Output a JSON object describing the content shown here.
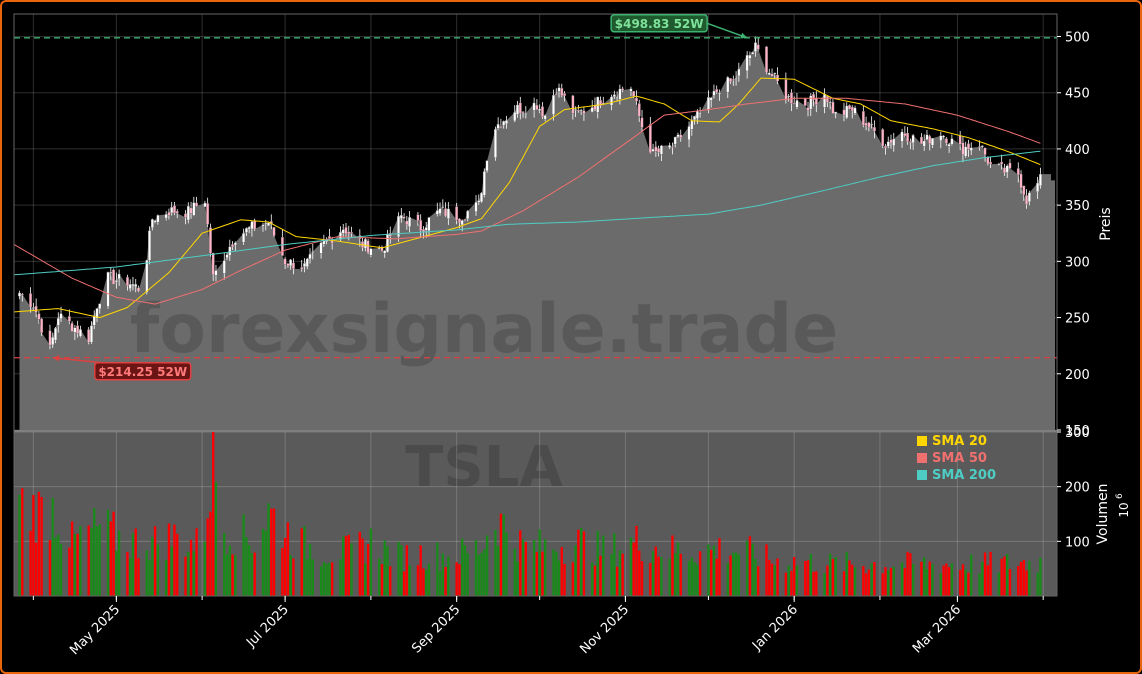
{
  "chart_data": [
    {
      "type": "candlestick",
      "panel": "price",
      "ticker_watermark": "TSLA",
      "site_watermark": "forexsignale.trade",
      "ylabel": "Preis",
      "ylim": [
        150,
        520
      ],
      "yticks": [
        150,
        200,
        250,
        300,
        350,
        400,
        450,
        500
      ],
      "xlim": [
        "2025-03-25",
        "2026-04-06"
      ],
      "x_ticks": [
        {
          "date": "2025-05-01",
          "label": "May 2025"
        },
        {
          "date": "2025-07-01",
          "label": "Jul 2025"
        },
        {
          "date": "2025-09-01",
          "label": "Sep 2025"
        },
        {
          "date": "2025-11-01",
          "label": "Nov 2025"
        },
        {
          "date": "2026-01-01",
          "label": "Jan 2026"
        },
        {
          "date": "2026-03-01",
          "label": "Mar 2026"
        }
      ],
      "grid": true,
      "close_keypoints": [
        [
          "2025-03-27",
          272
        ],
        [
          "2025-04-01",
          262
        ],
        [
          "2025-04-07",
          221
        ],
        [
          "2025-04-10",
          252
        ],
        [
          "2025-04-16",
          241
        ],
        [
          "2025-04-21",
          232
        ],
        [
          "2025-04-24",
          262
        ],
        [
          "2025-04-28",
          285
        ],
        [
          "2025-05-05",
          282
        ],
        [
          "2025-05-09",
          276
        ],
        [
          "2025-05-12",
          305
        ],
        [
          "2025-05-14",
          338
        ],
        [
          "2025-05-20",
          345
        ],
        [
          "2025-05-27",
          344
        ],
        [
          "2025-06-02",
          355
        ],
        [
          "2025-06-05",
          285
        ],
        [
          "2025-06-09",
          305
        ],
        [
          "2025-06-13",
          322
        ],
        [
          "2025-06-19",
          330
        ],
        [
          "2025-06-25",
          335
        ],
        [
          "2025-07-01",
          300
        ],
        [
          "2025-07-08",
          295
        ],
        [
          "2025-07-16",
          318
        ],
        [
          "2025-07-22",
          330
        ],
        [
          "2025-07-29",
          315
        ],
        [
          "2025-08-05",
          310
        ],
        [
          "2025-08-12",
          340
        ],
        [
          "2025-08-19",
          330
        ],
        [
          "2025-08-26",
          345
        ],
        [
          "2025-09-02",
          340
        ],
        [
          "2025-09-09",
          350
        ],
        [
          "2025-09-12",
          395
        ],
        [
          "2025-09-15",
          420
        ],
        [
          "2025-09-22",
          435
        ],
        [
          "2025-09-30",
          440
        ],
        [
          "2025-10-03",
          430
        ],
        [
          "2025-10-07",
          455
        ],
        [
          "2025-10-14",
          430
        ],
        [
          "2025-10-21",
          440
        ],
        [
          "2025-10-27",
          450
        ],
        [
          "2025-11-03",
          455
        ],
        [
          "2025-11-07",
          420
        ],
        [
          "2025-11-11",
          395
        ],
        [
          "2025-11-18",
          402
        ],
        [
          "2025-11-24",
          420
        ],
        [
          "2025-12-01",
          440
        ],
        [
          "2025-12-05",
          455
        ],
        [
          "2025-12-10",
          460
        ],
        [
          "2025-12-15",
          480
        ],
        [
          "2025-12-18",
          490
        ],
        [
          "2025-12-24",
          465
        ],
        [
          "2025-12-30",
          445
        ],
        [
          "2026-01-06",
          440
        ],
        [
          "2026-01-12",
          450
        ],
        [
          "2026-01-16",
          430
        ],
        [
          "2026-01-22",
          435
        ],
        [
          "2026-01-28",
          420
        ],
        [
          "2026-02-03",
          405
        ],
        [
          "2026-02-09",
          415
        ],
        [
          "2026-02-16",
          405
        ],
        [
          "2026-02-23",
          415
        ],
        [
          "2026-03-02",
          400
        ],
        [
          "2026-03-09",
          405
        ],
        [
          "2026-03-13",
          385
        ],
        [
          "2026-03-18",
          380
        ],
        [
          "2026-03-23",
          378
        ],
        [
          "2026-03-26",
          355
        ],
        [
          "2026-03-31",
          372
        ]
      ],
      "last_close": 372,
      "series": [
        {
          "name": "SMA 20",
          "color": "#ffd700",
          "keypoints": [
            [
              "2025-03-25",
              255
            ],
            [
              "2025-04-10",
              258
            ],
            [
              "2025-04-25",
              250
            ],
            [
              "2025-05-05",
              259
            ],
            [
              "2025-05-20",
              290
            ],
            [
              "2025-06-01",
              325
            ],
            [
              "2025-06-15",
              337
            ],
            [
              "2025-06-25",
              335
            ],
            [
              "2025-07-05",
              322
            ],
            [
              "2025-07-20",
              318
            ],
            [
              "2025-08-05",
              312
            ],
            [
              "2025-08-20",
              322
            ],
            [
              "2025-09-01",
              330
            ],
            [
              "2025-09-10",
              338
            ],
            [
              "2025-09-20",
              370
            ],
            [
              "2025-10-01",
              420
            ],
            [
              "2025-10-10",
              435
            ],
            [
              "2025-10-25",
              440
            ],
            [
              "2025-11-05",
              447
            ],
            [
              "2025-11-15",
              440
            ],
            [
              "2025-11-25",
              425
            ],
            [
              "2025-12-05",
              424
            ],
            [
              "2025-12-12",
              440
            ],
            [
              "2025-12-20",
              463
            ],
            [
              "2026-01-01",
              462
            ],
            [
              "2026-01-15",
              445
            ],
            [
              "2026-01-25",
              440
            ],
            [
              "2026-02-05",
              425
            ],
            [
              "2026-02-20",
              418
            ],
            [
              "2026-03-05",
              410
            ],
            [
              "2026-03-20",
              397
            ],
            [
              "2026-03-31",
              386
            ]
          ]
        },
        {
          "name": "SMA 50",
          "color": "#f07070",
          "keypoints": [
            [
              "2025-03-25",
              315
            ],
            [
              "2025-04-15",
              285
            ],
            [
              "2025-05-01",
              268
            ],
            [
              "2025-05-15",
              262
            ],
            [
              "2025-06-01",
              275
            ],
            [
              "2025-06-15",
              292
            ],
            [
              "2025-07-01",
              310
            ],
            [
              "2025-07-20",
              322
            ],
            [
              "2025-08-10",
              320
            ],
            [
              "2025-09-01",
              324
            ],
            [
              "2025-09-10",
              327
            ],
            [
              "2025-09-25",
              345
            ],
            [
              "2025-10-15",
              375
            ],
            [
              "2025-11-01",
              405
            ],
            [
              "2025-11-15",
              430
            ],
            [
              "2025-12-01",
              435
            ],
            [
              "2025-12-15",
              440
            ],
            [
              "2026-01-01",
              445
            ],
            [
              "2026-01-20",
              445
            ],
            [
              "2026-02-10",
              440
            ],
            [
              "2026-03-01",
              430
            ],
            [
              "2026-03-20",
              415
            ],
            [
              "2026-03-31",
              405
            ]
          ]
        },
        {
          "name": "SMA 200",
          "color": "#4ecdc4",
          "keypoints": [
            [
              "2025-03-25",
              288
            ],
            [
              "2025-05-01",
              295
            ],
            [
              "2025-06-01",
              305
            ],
            [
              "2025-07-01",
              315
            ],
            [
              "2025-08-01",
              323
            ],
            [
              "2025-09-01",
              328
            ],
            [
              "2025-09-20",
              333
            ],
            [
              "2025-10-15",
              335
            ],
            [
              "2025-11-10",
              339
            ],
            [
              "2025-12-01",
              342
            ],
            [
              "2025-12-20",
              350
            ],
            [
              "2026-01-10",
              362
            ],
            [
              "2026-02-01",
              375
            ],
            [
              "2026-02-20",
              385
            ],
            [
              "2026-03-10",
              392
            ],
            [
              "2026-03-31",
              398
            ]
          ]
        }
      ],
      "legend": {
        "position": "bottom-right",
        "entries": [
          {
            "label": "SMA 20",
            "color": "#ffd700"
          },
          {
            "label": "SMA 50",
            "color": "#f07070"
          },
          {
            "label": "SMA 200",
            "color": "#4ecdc4"
          }
        ]
      },
      "annotations": [
        {
          "label": "$498.83 52W",
          "value": 498.83,
          "date": "2025-12-15",
          "color": "#3cb371"
        },
        {
          "label": "$214.25 52W",
          "value": 214.25,
          "date": "2025-04-08",
          "color": "#e04040"
        }
      ]
    },
    {
      "type": "bar",
      "panel": "volume",
      "ylabel": "Volumen",
      "yunit": "6",
      "ylim": [
        0,
        300
      ],
      "yticks": [
        100,
        200,
        300
      ],
      "up_color": "#1a8a1a",
      "down_color": "#ff0000",
      "volume_keypoints": [
        [
          "2025-03-25",
          190
        ],
        [
          "2025-04-04",
          170
        ],
        [
          "2025-04-08",
          180
        ],
        [
          "2025-04-15",
          110
        ],
        [
          "2025-04-25",
          140
        ],
        [
          "2025-05-05",
          110
        ],
        [
          "2025-05-15",
          110
        ],
        [
          "2025-05-22",
          120
        ],
        [
          "2025-06-01",
          100
        ],
        [
          "2025-06-05",
          280
        ],
        [
          "2025-06-09",
          140
        ],
        [
          "2025-06-20",
          110
        ],
        [
          "2025-06-25",
          170
        ],
        [
          "2025-07-05",
          110
        ],
        [
          "2025-07-15",
          90
        ],
        [
          "2025-07-25",
          90
        ],
        [
          "2025-08-01",
          110
        ],
        [
          "2025-08-10",
          80
        ],
        [
          "2025-08-20",
          85
        ],
        [
          "2025-08-30",
          80
        ],
        [
          "2025-09-10",
          100
        ],
        [
          "2025-09-15",
          160
        ],
        [
          "2025-09-25",
          100
        ],
        [
          "2025-10-05",
          100
        ],
        [
          "2025-10-15",
          110
        ],
        [
          "2025-10-25",
          90
        ],
        [
          "2025-11-05",
          110
        ],
        [
          "2025-11-15",
          95
        ],
        [
          "2025-11-25",
          90
        ],
        [
          "2025-12-05",
          95
        ],
        [
          "2025-12-15",
          90
        ],
        [
          "2025-12-25",
          70
        ],
        [
          "2026-01-05",
          70
        ],
        [
          "2026-01-15",
          65
        ],
        [
          "2026-02-01",
          65
        ],
        [
          "2026-02-15",
          65
        ],
        [
          "2026-03-01",
          65
        ],
        [
          "2026-03-15",
          65
        ],
        [
          "2026-03-31",
          70
        ]
      ]
    }
  ]
}
